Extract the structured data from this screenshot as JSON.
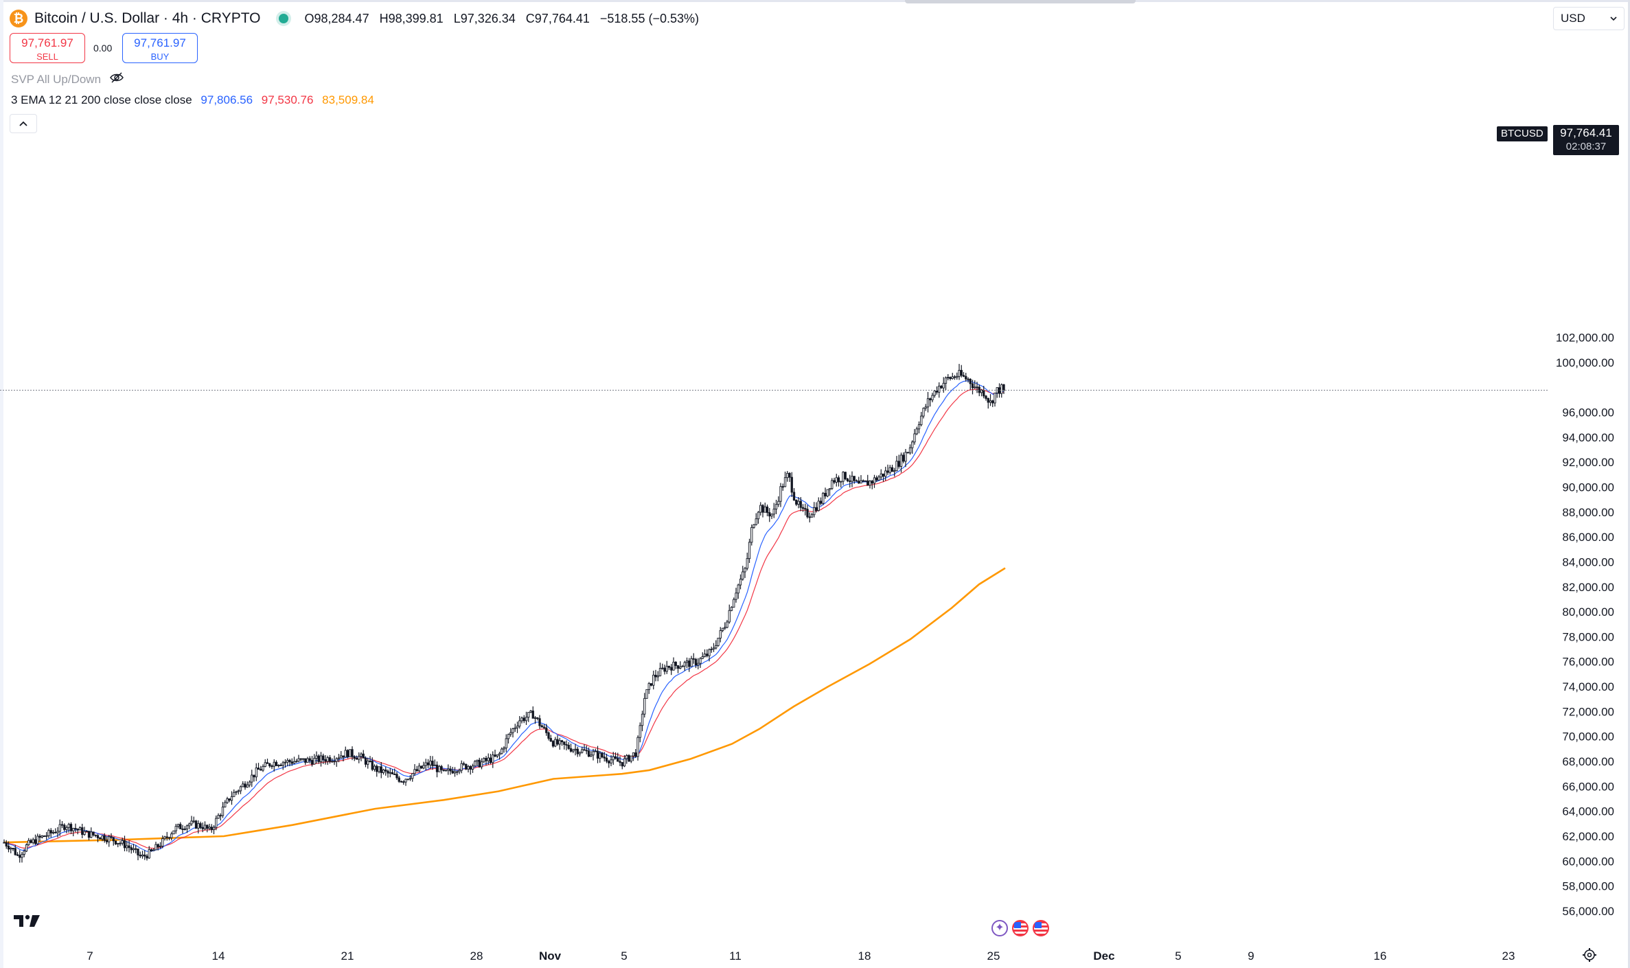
{
  "header": {
    "symbol_title": "Bitcoin / U.S. Dollar · 4h · CRYPTO",
    "ohlc": {
      "open": "O98,284.47",
      "high": "H98,399.81",
      "low": "L97,326.34",
      "close": "C97,764.41",
      "change": "−518.55 (−0.53%)"
    }
  },
  "trade": {
    "sell_price": "97,761.97",
    "sell_label": "SELL",
    "buy_price": "97,761.97",
    "buy_label": "BUY",
    "spread": "0.00"
  },
  "indicators": {
    "svp": "SVP All Up/Down",
    "ema": {
      "label": "3 EMA 12 21 200 close close close",
      "v12": "97,806.56",
      "v21": "97,530.76",
      "v200": "83,509.84"
    }
  },
  "currency": "USD",
  "last_price": {
    "symbol": "BTCUSD",
    "price": "97,764.41",
    "countdown": "02:08:37"
  },
  "colors": {
    "ema12": "#2962ff",
    "ema21": "#f23645",
    "ema200": "#ff9800",
    "up": "#131722"
  },
  "chart_data": {
    "type": "candlestick",
    "symbol": "BTCUSD",
    "interval": "4h",
    "y_ticks": [
      56000,
      58000,
      60000,
      62000,
      64000,
      66000,
      68000,
      70000,
      72000,
      74000,
      76000,
      78000,
      80000,
      82000,
      84000,
      86000,
      88000,
      90000,
      92000,
      94000,
      96000,
      100000,
      102000
    ],
    "y_tick_labels": [
      "56,000.00",
      "58,000.00",
      "60,000.00",
      "62,000.00",
      "64,000.00",
      "66,000.00",
      "68,000.00",
      "70,000.00",
      "72,000.00",
      "74,000.00",
      "76,000.00",
      "78,000.00",
      "80,000.00",
      "82,000.00",
      "84,000.00",
      "86,000.00",
      "88,000.00",
      "90,000.00",
      "92,000.00",
      "94,000.00",
      "96,000.00",
      "100,000.00",
      "102,000.00"
    ],
    "x_tick_labels": [
      "7",
      "14",
      "21",
      "28",
      "Nov",
      "5",
      "11",
      "18",
      "25",
      "Dec",
      "5",
      "9",
      "16",
      "23"
    ],
    "current_price": 97764.41,
    "price_path": [
      [
        0,
        61500
      ],
      [
        12,
        61000
      ],
      [
        20,
        60400
      ],
      [
        34,
        61300
      ],
      [
        50,
        61800
      ],
      [
        70,
        62300
      ],
      [
        90,
        62900
      ],
      [
        104,
        62600
      ],
      [
        120,
        62200
      ],
      [
        140,
        62000
      ],
      [
        160,
        61700
      ],
      [
        180,
        61200
      ],
      [
        200,
        60300
      ],
      [
        214,
        60700
      ],
      [
        230,
        61500
      ],
      [
        248,
        62600
      ],
      [
        270,
        63000
      ],
      [
        290,
        62800
      ],
      [
        300,
        62400
      ],
      [
        312,
        63600
      ],
      [
        330,
        65200
      ],
      [
        350,
        66200
      ],
      [
        370,
        67300
      ],
      [
        390,
        67900
      ],
      [
        420,
        68000
      ],
      [
        450,
        68100
      ],
      [
        480,
        68300
      ],
      [
        500,
        68700
      ],
      [
        520,
        68300
      ],
      [
        540,
        67400
      ],
      [
        560,
        67000
      ],
      [
        580,
        66500
      ],
      [
        600,
        67200
      ],
      [
        620,
        67900
      ],
      [
        640,
        67000
      ],
      [
        660,
        67500
      ],
      [
        690,
        67800
      ],
      [
        720,
        68400
      ],
      [
        734,
        70000
      ],
      [
        750,
        71300
      ],
      [
        770,
        71800
      ],
      [
        780,
        71000
      ],
      [
        800,
        69500
      ],
      [
        830,
        69000
      ],
      [
        860,
        68600
      ],
      [
        880,
        68200
      ],
      [
        900,
        67900
      ],
      [
        920,
        68700
      ],
      [
        926,
        70500
      ],
      [
        932,
        73000
      ],
      [
        945,
        74700
      ],
      [
        965,
        75600
      ],
      [
        990,
        75800
      ],
      [
        1010,
        76000
      ],
      [
        1030,
        76800
      ],
      [
        1050,
        79000
      ],
      [
        1065,
        81600
      ],
      [
        1080,
        83500
      ],
      [
        1090,
        87000
      ],
      [
        1100,
        88500
      ],
      [
        1110,
        88000
      ],
      [
        1120,
        87800
      ],
      [
        1132,
        90000
      ],
      [
        1142,
        91000
      ],
      [
        1152,
        89000
      ],
      [
        1162,
        88000
      ],
      [
        1172,
        87800
      ],
      [
        1190,
        88900
      ],
      [
        1205,
        90500
      ],
      [
        1225,
        90900
      ],
      [
        1245,
        90100
      ],
      [
        1265,
        90500
      ],
      [
        1285,
        91200
      ],
      [
        1300,
        91800
      ],
      [
        1318,
        93000
      ],
      [
        1330,
        95000
      ],
      [
        1345,
        96800
      ],
      [
        1360,
        98000
      ],
      [
        1375,
        98700
      ],
      [
        1390,
        99000
      ],
      [
        1405,
        98600
      ],
      [
        1418,
        97800
      ],
      [
        1428,
        97600
      ],
      [
        1436,
        96700
      ],
      [
        1445,
        97700
      ],
      [
        1458,
        98000
      ]
    ],
    "ema200_path": [
      [
        0,
        61500
      ],
      [
        160,
        61700
      ],
      [
        320,
        62000
      ],
      [
        420,
        62900
      ],
      [
        540,
        64200
      ],
      [
        640,
        64900
      ],
      [
        720,
        65600
      ],
      [
        800,
        66600
      ],
      [
        900,
        67000
      ],
      [
        940,
        67300
      ],
      [
        1000,
        68200
      ],
      [
        1060,
        69400
      ],
      [
        1100,
        70600
      ],
      [
        1150,
        72400
      ],
      [
        1200,
        74000
      ],
      [
        1260,
        75800
      ],
      [
        1320,
        77800
      ],
      [
        1380,
        80300
      ],
      [
        1420,
        82200
      ],
      [
        1458,
        83500
      ]
    ]
  }
}
